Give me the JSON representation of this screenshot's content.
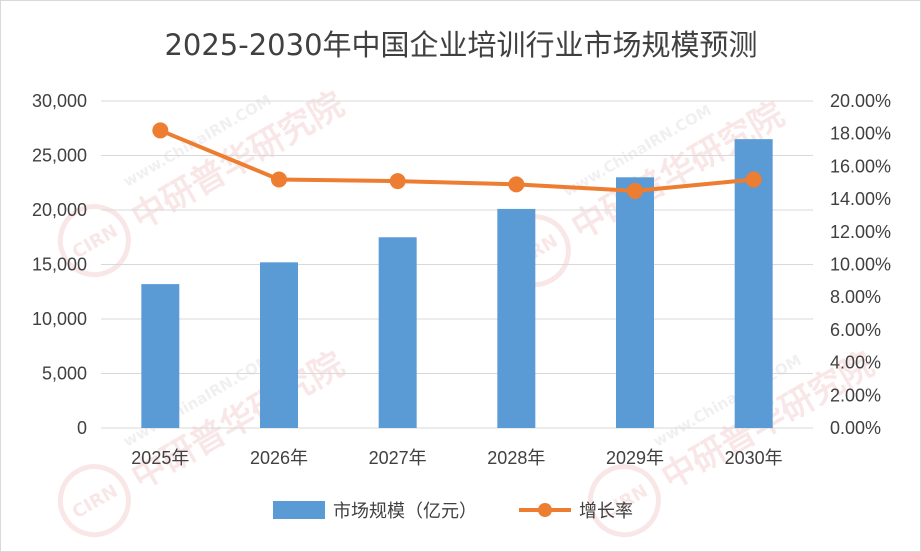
{
  "chart_data": {
    "type": "bar",
    "title": "2025-2030年中国企业培训行业市场规模预测",
    "categories": [
      "2025年",
      "2026年",
      "2027年",
      "2028年",
      "2029年",
      "2030年"
    ],
    "series": [
      {
        "name": "市场规模（亿元）",
        "type": "bar",
        "axis": "left",
        "values": [
          13200,
          15200,
          17500,
          20100,
          23000,
          26500
        ]
      },
      {
        "name": "增长率",
        "type": "line",
        "axis": "right",
        "values": [
          0.182,
          0.152,
          0.151,
          0.149,
          0.145,
          0.152
        ]
      }
    ],
    "y_left": {
      "ylim": [
        0,
        30000
      ],
      "ticks": [
        "0",
        "5,000",
        "10,000",
        "15,000",
        "20,000",
        "25,000",
        "30,000"
      ]
    },
    "y_right": {
      "ylim": [
        0,
        0.2
      ],
      "ticks": [
        "0.00%",
        "2.00%",
        "4.00%",
        "6.00%",
        "8.00%",
        "10.00%",
        "12.00%",
        "14.00%",
        "16.00%",
        "18.00%",
        "20.00%"
      ]
    },
    "grid": true,
    "legend": "bottom",
    "colors": {
      "bar": "#5b9bd5",
      "line": "#ed7d31",
      "grid": "#d9d9d9",
      "text": "#404040"
    }
  },
  "watermark": {
    "en": "www.ChinaIRN.COM",
    "cn": "中研普华研究院",
    "logo": "CIRN"
  }
}
